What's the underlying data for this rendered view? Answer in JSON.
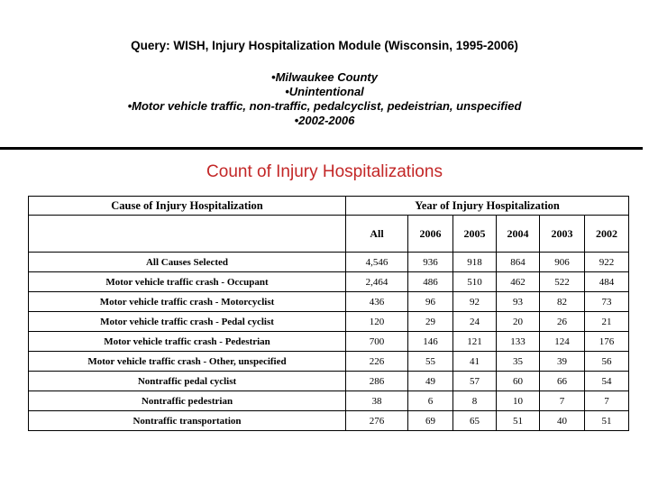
{
  "header": {
    "query_title": "Query: WISH, Injury Hospitalization Module (Wisconsin, 1995-2006)",
    "bullet_char": "•",
    "bullets": [
      "Milwaukee County",
      "Unintentional",
      "Motor vehicle traffic, non-traffic, pedalcyclist, pedeistrian, unspecified",
      "2002-2006"
    ]
  },
  "table_title": {
    "text": "Count of Injury Hospitalizations",
    "color": "#c32727"
  },
  "table": {
    "cause_header": "Cause of Injury Hospitalization",
    "year_group_header": "Year of Injury Hospitalization",
    "columns": [
      "All",
      "2006",
      "2005",
      "2004",
      "2003",
      "2002"
    ],
    "rows": [
      {
        "label": "All Causes Selected",
        "values": [
          "4,546",
          "936",
          "918",
          "864",
          "906",
          "922"
        ]
      },
      {
        "label": "Motor vehicle traffic crash - Occupant",
        "values": [
          "2,464",
          "486",
          "510",
          "462",
          "522",
          "484"
        ]
      },
      {
        "label": "Motor vehicle traffic crash - Motorcyclist",
        "values": [
          "436",
          "96",
          "92",
          "93",
          "82",
          "73"
        ]
      },
      {
        "label": "Motor vehicle traffic crash - Pedal cyclist",
        "values": [
          "120",
          "29",
          "24",
          "20",
          "26",
          "21"
        ]
      },
      {
        "label": "Motor vehicle traffic crash - Pedestrian",
        "values": [
          "700",
          "146",
          "121",
          "133",
          "124",
          "176"
        ]
      },
      {
        "label": "Motor vehicle traffic crash - Other, unspecified",
        "values": [
          "226",
          "55",
          "41",
          "35",
          "39",
          "56"
        ]
      },
      {
        "label": "Nontraffic pedal cyclist",
        "values": [
          "286",
          "49",
          "57",
          "60",
          "66",
          "54"
        ]
      },
      {
        "label": "Nontraffic pedestrian",
        "values": [
          "38",
          "6",
          "8",
          "10",
          "7",
          "7"
        ]
      },
      {
        "label": "Nontraffic transportation",
        "values": [
          "276",
          "69",
          "65",
          "51",
          "40",
          "51"
        ]
      }
    ]
  }
}
